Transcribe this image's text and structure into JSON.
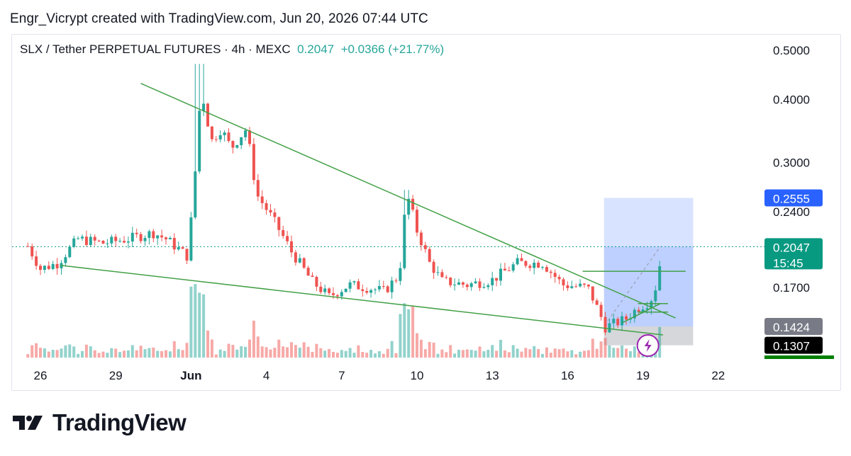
{
  "header": {
    "created_by": "Engr_Vicrypt created with TradingView.com, Jun 20, 2026 07:44 UTC"
  },
  "symbol": {
    "title": "SLX / Tether PERPETUAL FUTURES · 4h · MEXC",
    "price": "0.2047",
    "change": "+0.0366 (+21.77%)"
  },
  "chart_data": {
    "type": "candlestick",
    "timeframe": "4h",
    "x_axis_labels": [
      {
        "label": "26",
        "day": 26
      },
      {
        "label": "29",
        "day": 29
      },
      {
        "label": "Jun",
        "day": 32
      },
      {
        "label": "4",
        "day": 35
      },
      {
        "label": "7",
        "day": 38
      },
      {
        "label": "10",
        "day": 41
      },
      {
        "label": "13",
        "day": 44
      },
      {
        "label": "16",
        "day": 47
      },
      {
        "label": "19",
        "day": 50
      },
      {
        "label": "22",
        "day": 53
      }
    ],
    "y_axis_labels": [
      "0.5000",
      "0.4000",
      "0.3000",
      "0.2400",
      "0.1700"
    ],
    "y_scale": "log",
    "price_badges": [
      {
        "label": "0.2555",
        "price": 0.2555,
        "color": "#2962ff"
      },
      {
        "label": "0.2047",
        "sub": "15:45",
        "price": 0.2047,
        "color": "#089981"
      },
      {
        "label": "0.1424",
        "price": 0.1424,
        "color": "#787b86"
      },
      {
        "label": "0.1307",
        "price": 0.1307,
        "color": "#000000"
      }
    ],
    "last_price": 0.2047,
    "position_tool": {
      "entry": 0.1424,
      "target": 0.2555,
      "stop": 0.1307
    },
    "colors": {
      "up": "#26a69a",
      "down": "#ef5350",
      "trendline": "#43a047"
    },
    "anchors": [
      {
        "day": 25.5,
        "close": 0.205
      },
      {
        "day": 26.0,
        "close": 0.185
      },
      {
        "day": 26.7,
        "close": 0.19
      },
      {
        "day": 27.5,
        "close": 0.212
      },
      {
        "day": 28.5,
        "close": 0.208
      },
      {
        "day": 29.5,
        "close": 0.212
      },
      {
        "day": 30.5,
        "close": 0.218
      },
      {
        "day": 31.0,
        "close": 0.212
      },
      {
        "day": 31.9,
        "close": 0.195
      },
      {
        "day": 32.2,
        "close": 0.3
      },
      {
        "day": 32.4,
        "close": 0.42
      },
      {
        "day": 32.8,
        "close": 0.33
      },
      {
        "day": 33.2,
        "close": 0.35
      },
      {
        "day": 33.6,
        "close": 0.32
      },
      {
        "day": 34.2,
        "close": 0.35
      },
      {
        "day": 34.6,
        "close": 0.26
      },
      {
        "day": 35.3,
        "close": 0.23
      },
      {
        "day": 36.0,
        "close": 0.2
      },
      {
        "day": 36.8,
        "close": 0.175
      },
      {
        "day": 37.5,
        "close": 0.163
      },
      {
        "day": 38.3,
        "close": 0.172
      },
      {
        "day": 39.0,
        "close": 0.17
      },
      {
        "day": 39.7,
        "close": 0.167
      },
      {
        "day": 40.3,
        "close": 0.18
      },
      {
        "day": 40.6,
        "close": 0.26
      },
      {
        "day": 41.0,
        "close": 0.22
      },
      {
        "day": 41.5,
        "close": 0.19
      },
      {
        "day": 42.0,
        "close": 0.175
      },
      {
        "day": 43.0,
        "close": 0.172
      },
      {
        "day": 44.0,
        "close": 0.176
      },
      {
        "day": 45.0,
        "close": 0.19
      },
      {
        "day": 46.0,
        "close": 0.19
      },
      {
        "day": 46.8,
        "close": 0.172
      },
      {
        "day": 47.8,
        "close": 0.17
      },
      {
        "day": 48.5,
        "close": 0.142
      },
      {
        "day": 49.3,
        "close": 0.147
      },
      {
        "day": 49.8,
        "close": 0.155
      },
      {
        "day": 50.3,
        "close": 0.16
      },
      {
        "day": 50.6,
        "close": 0.175
      },
      {
        "day": 50.75,
        "close": 0.2047
      }
    ]
  },
  "footer": {
    "brand": "TradingView"
  }
}
